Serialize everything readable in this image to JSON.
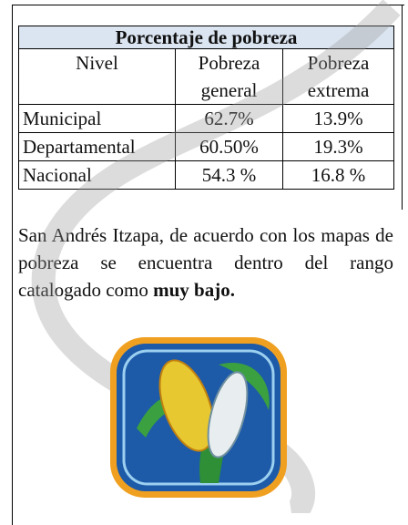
{
  "table": {
    "title": "Porcentaje  de pobreza",
    "header": [
      "Nivel",
      "Pobreza general",
      "Pobreza extrema"
    ],
    "rows": [
      [
        "Municipal",
        "62.7%",
        "13.9%"
      ],
      [
        "Departamental",
        "60.50%",
        "19.3%"
      ],
      [
        "Nacional",
        "54.3 %",
        "16.8 %"
      ]
    ]
  },
  "paragraph": {
    "text": "San Andrés Itzapa, de acuerdo con los mapas de pobreza se encuentra dentro del rango catalogado como",
    "bold": "muy bajo."
  }
}
